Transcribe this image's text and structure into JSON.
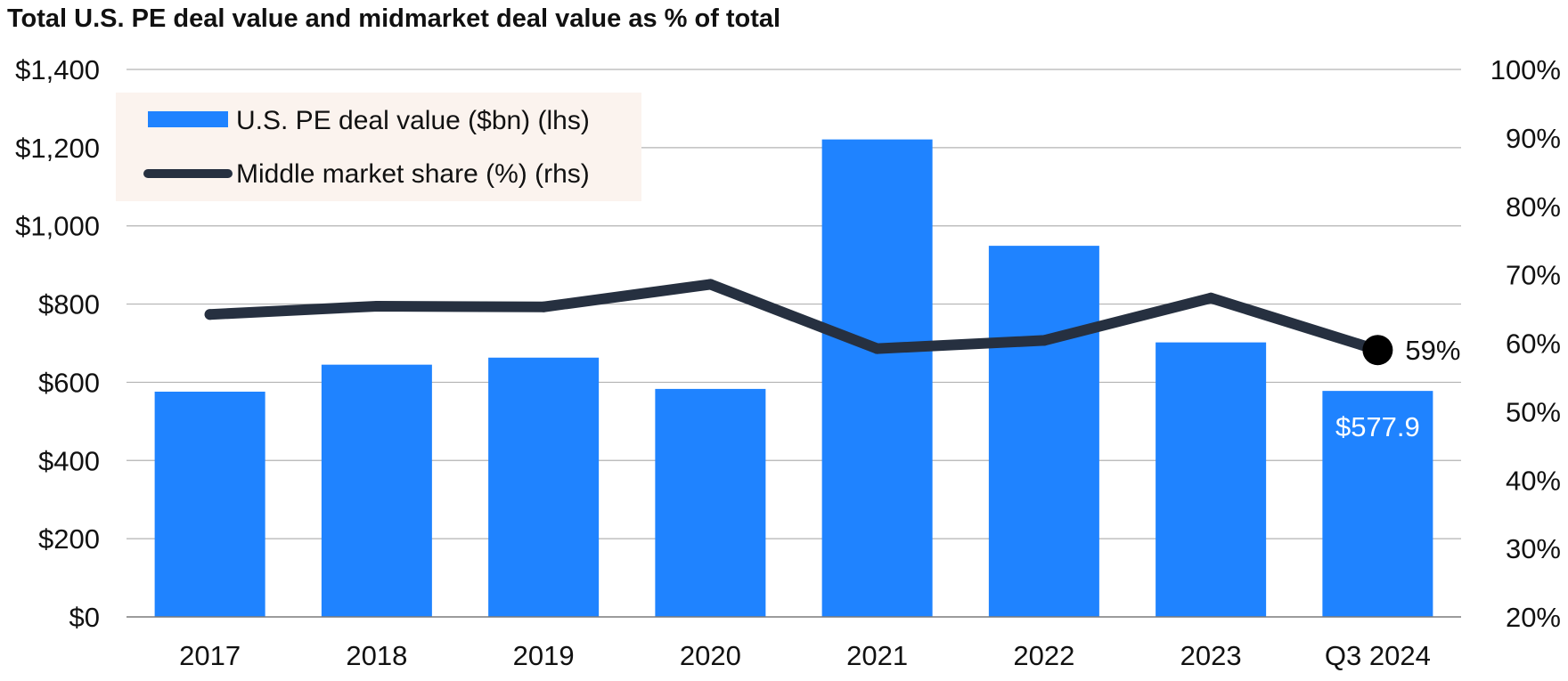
{
  "chart_data": {
    "type": "bar",
    "title": "Total U.S. PE deal value and midmarket deal value as % of total",
    "categories": [
      "2017",
      "2018",
      "2019",
      "2020",
      "2021",
      "2022",
      "2023",
      "Q3 2024"
    ],
    "series": [
      {
        "name": "U.S. PE deal value ($bn) (lhs)",
        "type": "bar",
        "axis": "left",
        "values": [
          576,
          645,
          663,
          583,
          1221,
          949,
          702,
          577.9
        ]
      },
      {
        "name": "Middle market share (%) (rhs)",
        "type": "line",
        "axis": "right",
        "values": [
          64.2,
          65.4,
          65.3,
          68.6,
          59.2,
          60.4,
          66.6,
          59
        ]
      }
    ],
    "left_axis": {
      "range": [
        0,
        1400
      ],
      "ticks": [
        0,
        200,
        400,
        600,
        800,
        1000,
        1200,
        1400
      ],
      "tick_labels": [
        "$0",
        "$200",
        "$400",
        "$600",
        "$800",
        "$1,000",
        "$1,200",
        "$1,400"
      ]
    },
    "right_axis": {
      "range": [
        20,
        100
      ],
      "ticks": [
        20,
        30,
        40,
        50,
        60,
        70,
        80,
        90,
        100
      ],
      "tick_labels": [
        "20%",
        "30%",
        "40%",
        "50%",
        "60%",
        "70%",
        "80%",
        "90%",
        "100%"
      ]
    },
    "annotations": [
      {
        "series": 0,
        "index": 7,
        "text": "$577.9"
      },
      {
        "series": 1,
        "index": 7,
        "text": "59%"
      }
    ],
    "grid": true,
    "legend_position": "top-left",
    "colors": {
      "bar": "#1f83ff",
      "line": "#263040",
      "marker": "#000000",
      "legend_bg": "#fbf3ee",
      "grid": "#b3b3b3",
      "axis": "#7a7a7a"
    }
  }
}
